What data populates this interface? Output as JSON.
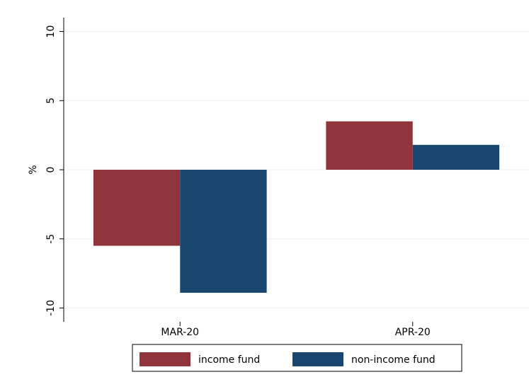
{
  "chart_data": {
    "type": "bar",
    "y_label": "%",
    "categories": [
      "MAR-20",
      "APR-20"
    ],
    "series": [
      {
        "name": "income fund",
        "color": "#90353b",
        "values": [
          -5.5,
          3.5
        ]
      },
      {
        "name": "non-income fund",
        "color": "#1a476f",
        "values": [
          -8.9,
          1.8
        ]
      }
    ],
    "ylim": [
      -11,
      11
    ],
    "yticks": [
      -10,
      -5,
      0,
      5,
      10
    ],
    "grid": true
  }
}
